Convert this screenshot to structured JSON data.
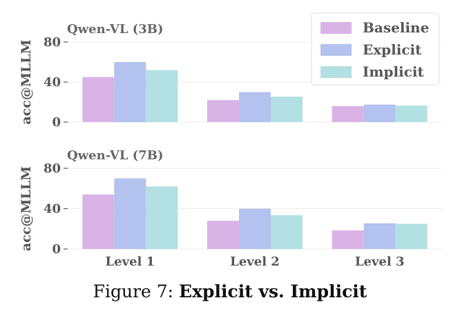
{
  "chart_data": {
    "type": "bar",
    "categories": [
      "Level 1",
      "Level 2",
      "Level 3"
    ],
    "ylabel": "acc@MLLM",
    "ylim": [
      0,
      80
    ],
    "yticks": [
      0,
      40,
      80
    ],
    "legend": {
      "placement": "top-right",
      "entries": [
        "Baseline",
        "Explicit",
        "Implicit"
      ]
    },
    "colors": {
      "Baseline": "#d9b3e6",
      "Explicit": "#b3c2ee",
      "Implicit": "#b3e0e3"
    },
    "grid": true,
    "panels": [
      {
        "title": "Qwen-VL (3B)",
        "series": [
          {
            "name": "Baseline",
            "values": [
              45,
              22,
              16
            ]
          },
          {
            "name": "Explicit",
            "values": [
              60,
              30,
              17.5
            ]
          },
          {
            "name": "Implicit",
            "values": [
              52,
              25.5,
              16.5
            ]
          }
        ]
      },
      {
        "title": "Qwen-VL (7B)",
        "series": [
          {
            "name": "Baseline",
            "values": [
              54,
              28,
              18.5
            ]
          },
          {
            "name": "Explicit",
            "values": [
              70,
              40,
              25.5
            ]
          },
          {
            "name": "Implicit",
            "values": [
              62,
              33.5,
              25
            ]
          }
        ]
      }
    ]
  },
  "caption": {
    "prefix": "Figure 7: ",
    "bold": "Explicit vs. Implicit"
  }
}
